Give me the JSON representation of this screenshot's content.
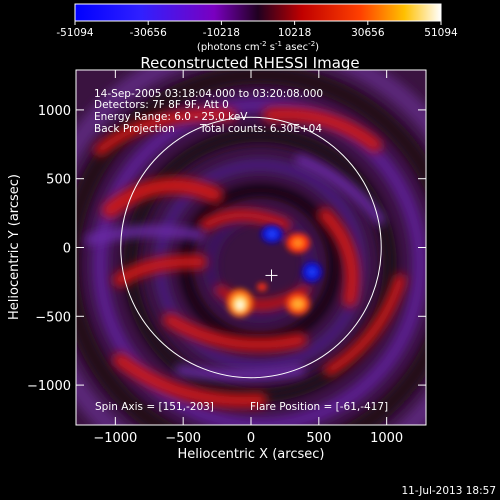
{
  "chart_data": {
    "type": "heatmap",
    "title": "Reconstructed RHESSI Image",
    "xlabel": "Heliocentric X (arcsec)",
    "ylabel": "Heliocentric Y (arcsec)",
    "xlim": [
      -1290,
      1290
    ],
    "ylim": [
      -1290,
      1290
    ],
    "x_ticks": [
      -1000,
      -500,
      0,
      500,
      1000
    ],
    "y_ticks": [
      -1000,
      -500,
      0,
      500,
      1000
    ],
    "colorbar": {
      "ticks": [
        "-51094",
        "-30656",
        "-10218",
        "10218",
        "30656",
        "51094"
      ],
      "range": [
        -51094,
        51094
      ],
      "unit_prefix": "(photons cm",
      "unit_sup1": "-2",
      "unit_mid": " s",
      "unit_sup2": "-1",
      "unit_mid2": " asec",
      "unit_sup3": "-2",
      "unit_suffix": ")"
    },
    "annotations": {
      "time_range": "14-Sep-2005 03:18:04.000 to 03:20:08.000",
      "detectors": "Detectors: 7F 8F 9F, Att 0",
      "energy": "Energy Range: 6.0 - 25.0 keV",
      "method": "Back Projection",
      "counts": "Total counts: 6.30E+04",
      "spin_axis": "Spin Axis = [151,-203]",
      "flare_position": "Flare Position = [-61,-417]"
    },
    "solar_limb_radius": 960,
    "spin_axis_marker": [
      151,
      -203
    ],
    "peak_sources": [
      {
        "x": -10,
        "y": -420,
        "level": 51094
      },
      {
        "x": 330,
        "y": -430,
        "level": 30000
      },
      {
        "x": 160,
        "y": -80,
        "level": 20000
      }
    ],
    "footer_date": "11-Jul-2013 18:57"
  }
}
